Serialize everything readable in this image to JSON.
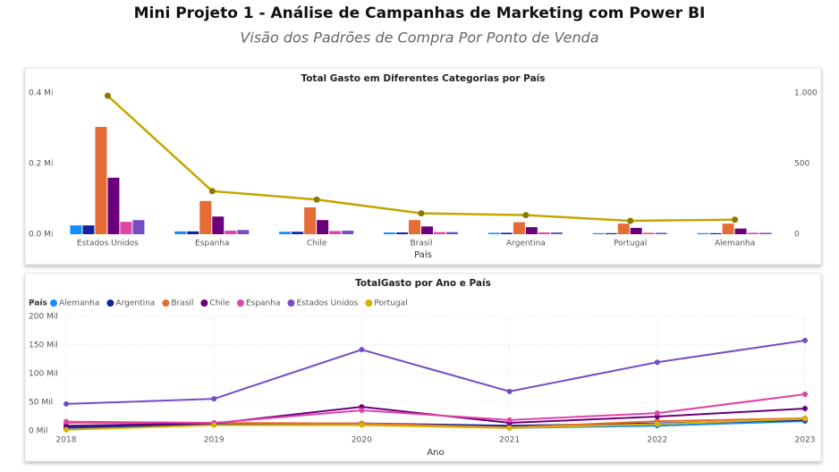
{
  "header": {
    "title": "Mini Projeto 1 - Análise de Campanhas de Marketing com Power BI",
    "subtitle": "Visão dos Padrões de Compra Por Ponto de Venda"
  },
  "chart_data": [
    {
      "type": "combo",
      "title": "Total Gasto em Diferentes Categorias por País",
      "x_label": "País",
      "categories": [
        "Estados Unidos",
        "Espanha",
        "Chile",
        "Brasil",
        "Argentina",
        "Portugal",
        "Alemanha"
      ],
      "ylim": [
        0,
        0.4
      ],
      "yticks": [
        {
          "value": 0,
          "label": "0.0 Mi"
        },
        {
          "value": 0.2,
          "label": "0.2 Mi"
        },
        {
          "value": 0.4,
          "label": "0.4 Mi"
        }
      ],
      "y2lim": [
        0,
        1000
      ],
      "y2ticks": [
        0,
        500,
        {
          "value": 1000,
          "label": "1.000"
        }
      ],
      "series": [
        {
          "color": "#118DFF",
          "values": [
            0.025,
            0.008,
            0.007,
            0.005,
            0.004,
            0.003,
            0.003
          ]
        },
        {
          "color": "#12239E",
          "values": [
            0.025,
            0.008,
            0.007,
            0.005,
            0.004,
            0.003,
            0.003
          ]
        },
        {
          "color": "#E66C37",
          "values": [
            0.304,
            0.094,
            0.076,
            0.04,
            0.034,
            0.03,
            0.03
          ]
        },
        {
          "color": "#6B007B",
          "values": [
            0.16,
            0.05,
            0.04,
            0.022,
            0.02,
            0.018,
            0.016
          ]
        },
        {
          "color": "#E044A7",
          "values": [
            0.035,
            0.01,
            0.009,
            0.006,
            0.005,
            0.004,
            0.004
          ]
        },
        {
          "color": "#744EC2",
          "values": [
            0.04,
            0.012,
            0.01,
            0.006,
            0.005,
            0.004,
            0.004
          ]
        },
        {
          "color": "#C4A600",
          "axis": "y2",
          "values": [
            980,
            305,
            245,
            148,
            135,
            95,
            103
          ]
        }
      ]
    },
    {
      "type": "line",
      "title": "TotalGasto por Ano e País",
      "x_label": "Ano",
      "legend_title": "País",
      "grid": true,
      "x": [
        2018,
        2019,
        2020,
        2021,
        2022,
        2023
      ],
      "xlim": [
        2018,
        2023
      ],
      "xticks": [
        2018,
        2019,
        2020,
        2021,
        2022,
        2023
      ],
      "ylim": [
        0,
        200
      ],
      "yticks": [
        {
          "value": 0,
          "label": "0 Mil"
        },
        {
          "value": 50,
          "label": "50 Mil"
        },
        {
          "value": 100,
          "label": "100 Mil"
        },
        {
          "value": 150,
          "label": "150 Mil"
        },
        {
          "value": 200,
          "label": "200 Mil"
        }
      ],
      "series": [
        {
          "name": "Alemanha",
          "color": "#118DFF",
          "values": [
            3,
            11,
            11,
            5,
            9,
            17
          ]
        },
        {
          "name": "Argentina",
          "color": "#12239E",
          "values": [
            6,
            11,
            13,
            9,
            13,
            19
          ]
        },
        {
          "name": "Brasil",
          "color": "#E66C37",
          "values": [
            14,
            14,
            13,
            6,
            17,
            22
          ]
        },
        {
          "name": "Chile",
          "color": "#6B007B",
          "values": [
            9,
            13,
            42,
            14,
            25,
            39
          ]
        },
        {
          "name": "Espanha",
          "color": "#E044A7",
          "values": [
            16,
            14,
            36,
            19,
            31,
            64
          ]
        },
        {
          "name": "Estados Unidos",
          "color": "#744EC2",
          "values": [
            47,
            56,
            142,
            69,
            120,
            158
          ]
        },
        {
          "name": "Portugal",
          "color": "#D9B300",
          "values": [
            2,
            10,
            10,
            5,
            12,
            21
          ]
        }
      ]
    }
  ]
}
